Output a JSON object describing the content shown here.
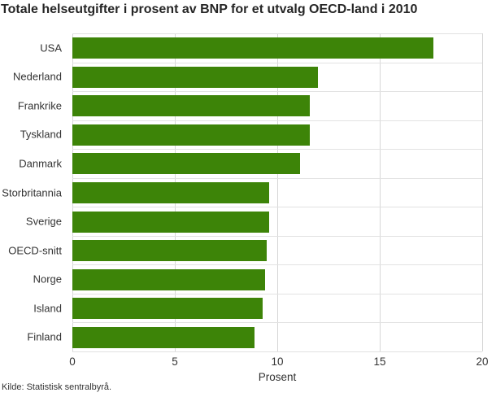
{
  "source": "Kilde: Statistisk sentralbyrå.",
  "colors": {
    "bar": "#3d8408",
    "grid_vertical": "#d6d6d6",
    "grid_horizontal": "#e2e2e2",
    "text": "#333333",
    "title_text": "#262626"
  },
  "chart_data": {
    "type": "bar",
    "orientation": "horizontal",
    "title": "Totale helseutgifter i prosent av BNP for et utvalg OECD-land i 2010",
    "categories": [
      "USA",
      "Nederland",
      "Frankrike",
      "Tyskland",
      "Danmark",
      "Storbritannia",
      "Sverige",
      "OECD-snitt",
      "Norge",
      "Island",
      "Finland"
    ],
    "values": [
      17.6,
      12.0,
      11.6,
      11.6,
      11.1,
      9.6,
      9.6,
      9.5,
      9.4,
      9.3,
      8.9
    ],
    "xlabel": "Prosent",
    "ylabel": "",
    "xlim": [
      0,
      20
    ],
    "xticks": [
      0,
      5,
      10,
      15,
      20
    ],
    "grid": true,
    "legend": "none"
  }
}
